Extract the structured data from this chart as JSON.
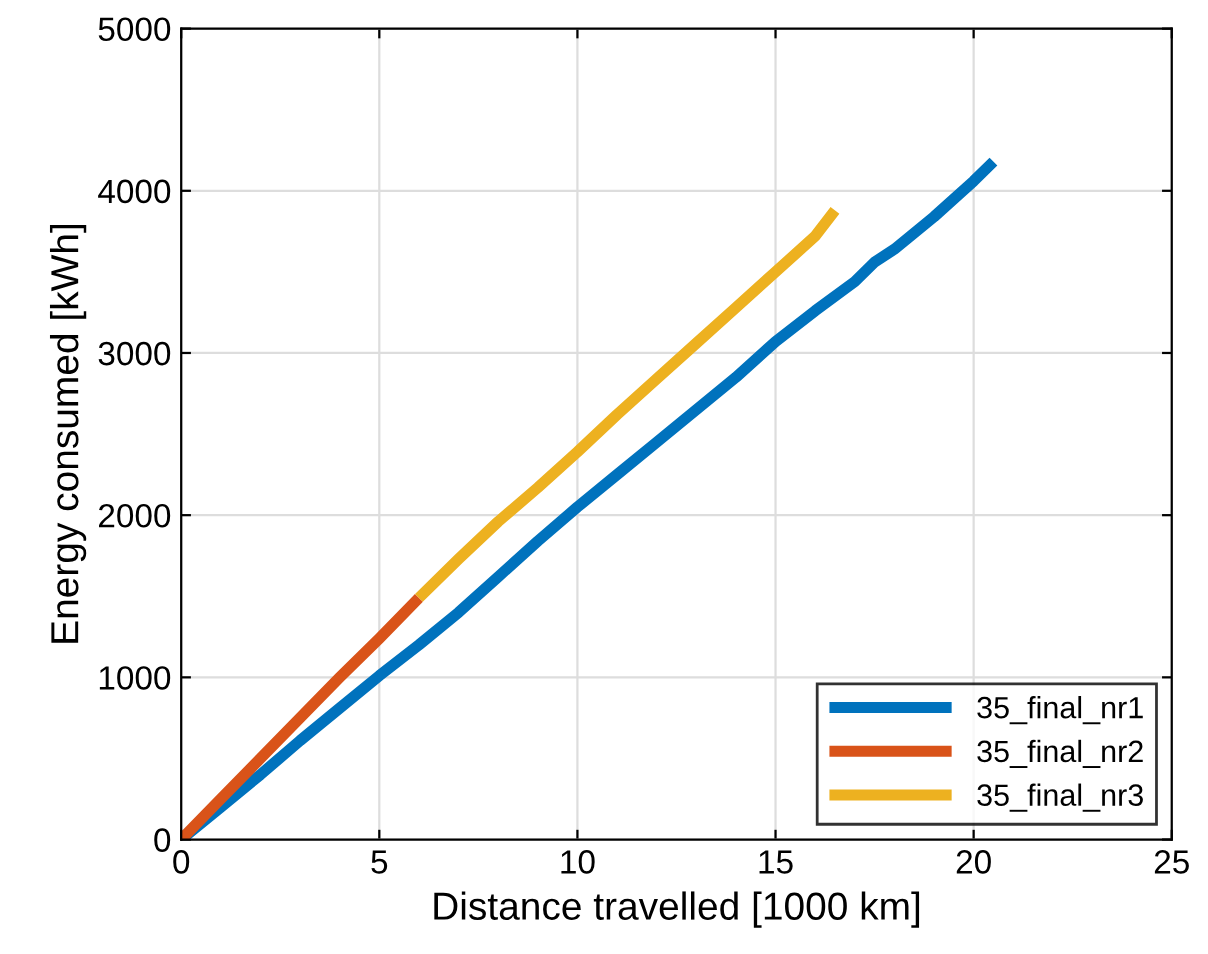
{
  "chart_data": {
    "type": "line",
    "xlabel": "Distance travelled [1000 km]",
    "ylabel": "Energy consumed [kWh]",
    "xlim": [
      0,
      25
    ],
    "xticks": [
      0,
      5,
      10,
      15,
      20,
      25
    ],
    "ylim": [
      0,
      5000
    ],
    "yticks": [
      0,
      1000,
      2000,
      3000,
      4000,
      5000
    ],
    "grid": true,
    "legend": "bottom right",
    "line_style": "solid",
    "series": [
      {
        "name": "35_final_nr1",
        "color": "#0072bd",
        "x": [
          0,
          1,
          2,
          3,
          4,
          5,
          6,
          7,
          8,
          9,
          10,
          11,
          12,
          13,
          14,
          15,
          16,
          17,
          17.5,
          18,
          19,
          20,
          20.5
        ],
        "values": [
          0,
          200,
          400,
          610,
          810,
          1010,
          1200,
          1400,
          1620,
          1840,
          2050,
          2250,
          2450,
          2650,
          2850,
          3070,
          3260,
          3440,
          3560,
          3640,
          3840,
          4060,
          4180
        ]
      },
      {
        "name": "35_final_nr2",
        "color": "#d95319",
        "x": [
          0,
          1,
          2,
          3,
          4,
          5,
          6
        ],
        "values": [
          0,
          250,
          500,
          750,
          1000,
          1240,
          1490
        ]
      },
      {
        "name": "35_final_nr3",
        "color": "#edb120",
        "x": [
          6,
          7,
          8,
          9,
          10,
          11,
          12,
          13,
          14,
          15,
          16,
          16.5
        ],
        "values": [
          1490,
          1730,
          1960,
          2170,
          2390,
          2620,
          2840,
          3060,
          3280,
          3500,
          3720,
          3880
        ]
      }
    ]
  }
}
